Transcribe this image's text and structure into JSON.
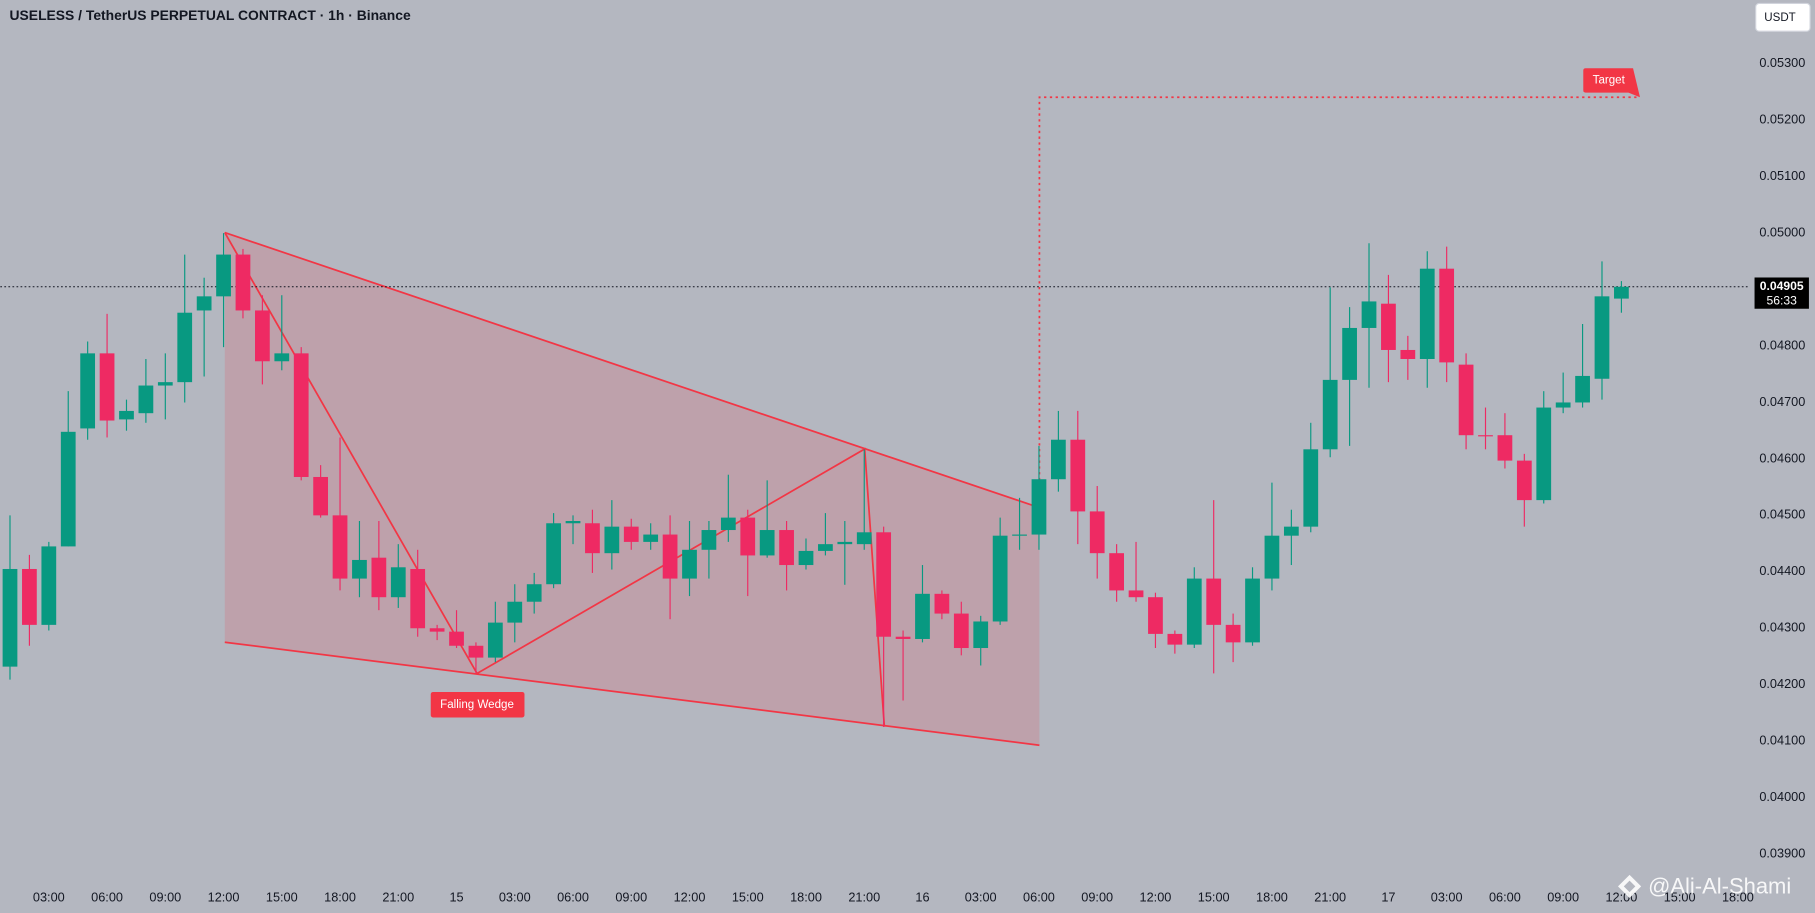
{
  "chart_data": {
    "type": "candlestick",
    "title": "USELESS / TetherUS PERPETUAL CONTRACT · 1h · Binance",
    "currency": "USDT",
    "up_color": "#089981",
    "down_color": "#ee2a63",
    "categories": [
      null,
      null,
      "03:00",
      null,
      null,
      "06:00",
      null,
      null,
      "09:00",
      null,
      null,
      "12:00",
      null,
      null,
      "15:00",
      null,
      null,
      "18:00",
      null,
      null,
      "21:00",
      null,
      null,
      "15",
      null,
      null,
      "03:00",
      null,
      null,
      "06:00",
      null,
      null,
      "09:00",
      null,
      null,
      "12:00",
      null,
      null,
      "15:00",
      null,
      null,
      "18:00",
      null,
      null,
      "21:00",
      null,
      null,
      "16",
      null,
      null,
      "03:00",
      null,
      null,
      "06:00",
      null,
      null,
      "09:00",
      null,
      null,
      "12:00",
      null,
      null,
      "15:00",
      null,
      null,
      "18:00",
      null,
      null,
      "21:00",
      null,
      null,
      "17",
      null,
      null,
      "03:00",
      null,
      null,
      "06:00",
      null,
      null,
      "09:00",
      null,
      null,
      "12:00",
      null,
      null,
      "15:00",
      null,
      null,
      "18:00"
    ],
    "open": [
      0.04232,
      0.04405,
      0.04306,
      0.04445,
      0.04654,
      0.04787,
      0.0467,
      0.04681,
      0.0473,
      0.04736,
      0.04863,
      0.04888,
      0.04962,
      0.04863,
      0.04773,
      0.04787,
      0.04568,
      0.045,
      0.04388,
      0.04425,
      0.04355,
      0.04405,
      0.043,
      0.04294,
      0.04269,
      0.04248,
      0.0431,
      0.04347,
      0.04378,
      0.04486,
      0.04486,
      0.04433,
      0.0448,
      0.04453,
      0.04466,
      0.04388,
      0.04439,
      0.04474,
      0.04496,
      0.04429,
      0.04474,
      0.04412,
      0.04437,
      0.04449,
      0.04449,
      0.0447,
      0.04285,
      0.04281,
      0.04361,
      0.04326,
      0.04265,
      0.04312,
      0.04464,
      0.04466,
      0.04564,
      0.04634,
      0.04507,
      0.04433,
      0.04367,
      0.04355,
      0.0429,
      0.04271,
      0.04388,
      0.04306,
      0.04275,
      0.04388,
      0.04464,
      0.0448,
      0.04617,
      0.0474,
      0.04832,
      0.04875,
      0.04793,
      0.04777,
      0.04937,
      0.04767,
      0.04642,
      0.04642,
      0.04597,
      0.04527,
      0.04691,
      0.047,
      0.04742,
      0.04884,
      null,
      null,
      null,
      null,
      null,
      null
    ],
    "high": [
      0.045,
      0.0443,
      0.04453,
      0.0472,
      0.04808,
      0.04857,
      0.04705,
      0.04777,
      0.04787,
      0.04962,
      0.04921,
      0.05,
      0.04972,
      0.0489,
      0.0489,
      0.04798,
      0.04589,
      0.04638,
      0.0449,
      0.0449,
      0.04449,
      0.04439,
      0.04306,
      0.04332,
      0.04275,
      0.04347,
      0.04378,
      0.04398,
      0.04504,
      0.045,
      0.0451,
      0.04527,
      0.04494,
      0.04486,
      0.045,
      0.0449,
      0.0449,
      0.04572,
      0.0451,
      0.04562,
      0.0449,
      0.04459,
      0.04504,
      0.0449,
      0.04617,
      0.0448,
      0.04296,
      0.04412,
      0.04367,
      0.04347,
      0.04322,
      0.04496,
      0.04531,
      0.04623,
      0.04685,
      0.04685,
      0.04552,
      0.04449,
      0.04453,
      0.04363,
      0.04296,
      0.04408,
      0.04527,
      0.04326,
      0.04408,
      0.04558,
      0.0451,
      0.04664,
      0.04904,
      0.04869,
      0.04982,
      0.04926,
      0.04818,
      0.04968,
      0.04976,
      0.04787,
      0.04691,
      0.04681,
      0.04609,
      0.0472,
      0.04753,
      0.04839,
      0.0495,
      0.04915,
      null,
      null,
      null,
      null,
      null,
      null
    ],
    "low": [
      0.04209,
      0.04269,
      0.04296,
      0.04445,
      0.04634,
      0.04638,
      0.0465,
      0.04664,
      0.0467,
      0.047,
      0.04746,
      0.04798,
      0.04849,
      0.04732,
      0.04757,
      0.04562,
      0.04496,
      0.04367,
      0.04355,
      0.04332,
      0.04336,
      0.04285,
      0.04279,
      0.04265,
      0.0422,
      0.0424,
      0.04275,
      0.04326,
      0.04371,
      0.04449,
      0.04398,
      0.04404,
      0.04439,
      0.04439,
      0.04316,
      0.04357,
      0.04388,
      0.04453,
      0.04357,
      0.04425,
      0.04367,
      0.04404,
      0.04429,
      0.04377,
      0.04439,
      0.04125,
      0.04172,
      0.04275,
      0.04316,
      0.04252,
      0.04234,
      0.04306,
      0.04439,
      0.04439,
      0.04542,
      0.04449,
      0.04388,
      0.04347,
      0.04347,
      0.04265,
      0.04255,
      0.04265,
      0.0422,
      0.0424,
      0.04269,
      0.04367,
      0.04412,
      0.0447,
      0.04603,
      0.04623,
      0.04726,
      0.04736,
      0.0474,
      0.04726,
      0.04736,
      0.04617,
      0.04617,
      0.04583,
      0.0448,
      0.04521,
      0.04681,
      0.04691,
      0.04705,
      0.04859,
      null,
      null,
      null,
      null,
      null,
      null
    ],
    "close": [
      0.04405,
      0.04306,
      0.04445,
      0.04648,
      0.04787,
      0.04668,
      0.04685,
      0.0473,
      0.04736,
      0.04859,
      0.04888,
      0.04962,
      0.04863,
      0.04773,
      0.04787,
      0.04568,
      0.045,
      0.04388,
      0.04421,
      0.04355,
      0.04408,
      0.043,
      0.04294,
      0.04269,
      0.04248,
      0.0431,
      0.04347,
      0.04378,
      0.04486,
      0.0449,
      0.04433,
      0.0448,
      0.04453,
      0.04466,
      0.04388,
      0.04439,
      0.04474,
      0.04496,
      0.04429,
      0.04474,
      0.04412,
      0.04437,
      0.04449,
      0.04453,
      0.0447,
      0.04285,
      0.04281,
      0.04361,
      0.04326,
      0.04265,
      0.04312,
      0.04464,
      0.04466,
      0.04564,
      0.04634,
      0.04507,
      0.04433,
      0.04367,
      0.04355,
      0.0429,
      0.04271,
      0.04388,
      0.04306,
      0.04275,
      0.04388,
      0.04464,
      0.0448,
      0.04617,
      0.0474,
      0.04832,
      0.04879,
      0.04793,
      0.04777,
      0.04937,
      0.04771,
      0.04642,
      0.0464,
      0.04597,
      0.04527,
      0.04691,
      0.047,
      0.04747,
      0.04888,
      0.04905,
      null,
      null,
      null,
      null,
      null,
      null
    ],
    "ylim": [
      0.03855,
      0.05413
    ],
    "yticks": [
      {
        "value": 0.053,
        "label": "0.05300"
      },
      {
        "value": 0.052,
        "label": "0.05200"
      },
      {
        "value": 0.051,
        "label": "0.05100"
      },
      {
        "value": 0.05,
        "label": "0.05000"
      },
      {
        "value": 0.049,
        "label": "0.04900"
      },
      {
        "value": 0.048,
        "label": "0.04800"
      },
      {
        "value": 0.047,
        "label": "0.04700"
      },
      {
        "value": 0.046,
        "label": "0.04600"
      },
      {
        "value": 0.045,
        "label": "0.04500"
      },
      {
        "value": 0.044,
        "label": "0.04400"
      },
      {
        "value": 0.043,
        "label": "0.04300"
      },
      {
        "value": 0.042,
        "label": "0.04200"
      },
      {
        "value": 0.041,
        "label": "0.04100"
      },
      {
        "value": 0.04,
        "label": "0.04000"
      },
      {
        "value": 0.039,
        "label": "0.03900"
      }
    ],
    "last_price": 0.04905,
    "countdown": "56:33",
    "pattern_label": "Falling Wedge",
    "target_label": "Target",
    "watermark": "@Ali-Al-Shami"
  }
}
